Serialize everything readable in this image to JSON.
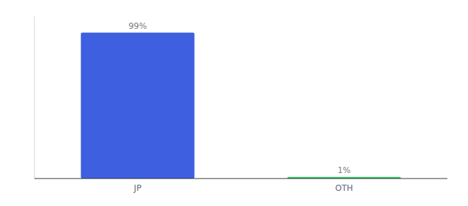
{
  "chart_data": {
    "type": "bar",
    "categories": [
      "JP",
      "OTH"
    ],
    "values": [
      99,
      1
    ],
    "value_labels": [
      "99%",
      "1%"
    ],
    "colors": [
      "#3d5fe0",
      "#22c55e"
    ],
    "ylim": [
      0,
      110
    ],
    "data_labels": true,
    "tick_labels": "x"
  }
}
